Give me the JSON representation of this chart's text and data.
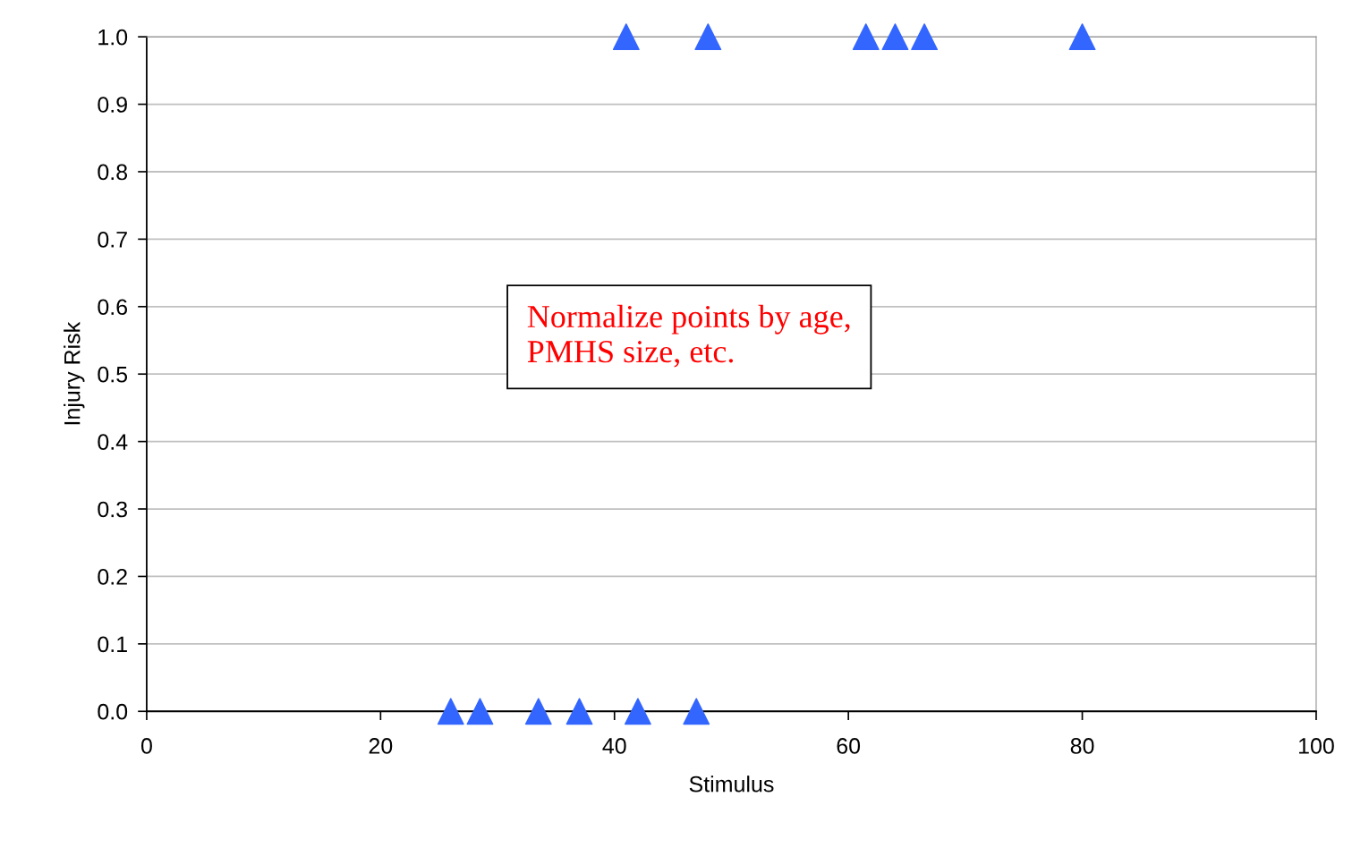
{
  "chart_data": {
    "type": "scatter",
    "xlabel": "Stimulus",
    "ylabel": "Injury Risk",
    "annotations": [
      "Normalize points by age,\nPMHS size, etc."
    ],
    "series": [
      {
        "color": "#3366ff",
        "x": [
          41,
          48,
          61.5,
          64,
          66.5,
          80
        ],
        "values": [
          1,
          1,
          1,
          1,
          1,
          1
        ]
      },
      {
        "color": "#3366ff",
        "x": [
          26,
          28.5,
          33.5,
          37,
          42,
          47
        ],
        "values": [
          0,
          0,
          0,
          0,
          0,
          0
        ]
      }
    ],
    "xlim": [
      0,
      100
    ],
    "xticks": [
      0,
      20,
      40,
      60,
      80,
      100
    ],
    "ylim": [
      0,
      1
    ],
    "yticks": [
      {
        "value": 0,
        "label": "0.0"
      },
      0.1,
      0.2,
      0.3,
      0.4,
      0.5,
      0.6,
      0.7,
      0.8,
      0.9,
      {
        "value": 1,
        "label": "1.0"
      }
    ],
    "grid": "y",
    "marker": "triangle"
  }
}
